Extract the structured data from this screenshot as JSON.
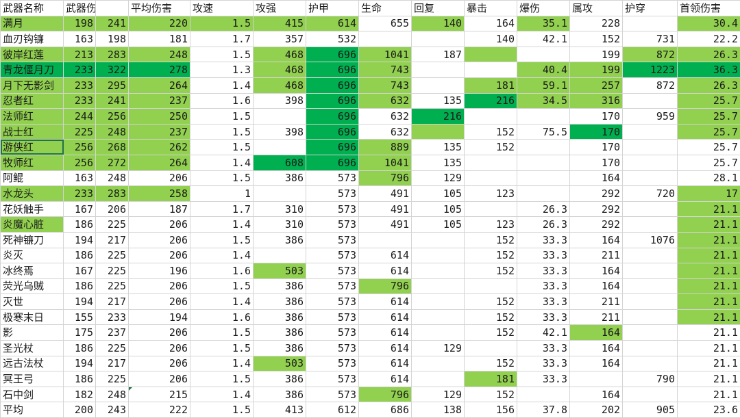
{
  "sheet": {
    "headers": [
      "武器名称",
      "武器伤害",
      "",
      "平均伤害",
      "攻速",
      "攻强",
      "护甲",
      "生命",
      "回复",
      "暴击",
      "爆伤",
      "属攻",
      "护穿",
      "首领伤害"
    ],
    "highlight_colors": {
      "light": "#92d050",
      "dark": "#00b050"
    },
    "rows": [
      [
        "满月",
        "198",
        "241",
        "220",
        "1.5",
        "415",
        "614",
        "655",
        "140",
        "164",
        "35.1",
        "228",
        "",
        "30.4"
      ],
      [
        "血刃钩镰",
        "163",
        "198",
        "181",
        "1.7",
        "357",
        "532",
        "",
        "",
        "140",
        "42.1",
        "152",
        "731",
        "22.2"
      ],
      [
        "彼岸红莲",
        "213",
        "283",
        "248",
        "1.5",
        "468",
        "696",
        "1041",
        "187",
        "",
        "",
        "199",
        "872",
        "26.3"
      ],
      [
        "青龙偃月刀",
        "233",
        "322",
        "278",
        "1.3",
        "468",
        "696",
        "743",
        "",
        "",
        "40.4",
        "199",
        "1223",
        "36.3"
      ],
      [
        "月下无影剑",
        "233",
        "295",
        "264",
        "1.4",
        "468",
        "696",
        "743",
        "",
        "181",
        "59.1",
        "257",
        "872",
        "26.3"
      ],
      [
        "忍者红",
        "233",
        "241",
        "237",
        "1.6",
        "398",
        "696",
        "632",
        "135",
        "216",
        "34.5",
        "316",
        "",
        "25.7"
      ],
      [
        "法师红",
        "244",
        "256",
        "250",
        "1.5",
        "",
        "696",
        "632",
        "216",
        "",
        "",
        "170",
        "959",
        "25.7"
      ],
      [
        "战士红",
        "225",
        "248",
        "237",
        "1.5",
        "398",
        "696",
        "632",
        "",
        "152",
        "75.5",
        "170",
        "",
        "25.7"
      ],
      [
        "游侠红",
        "256",
        "268",
        "262",
        "1.5",
        "",
        "696",
        "889",
        "135",
        "152",
        "",
        "170",
        "",
        "25.7"
      ],
      [
        "牧师红",
        "256",
        "272",
        "264",
        "1.4",
        "608",
        "696",
        "1041",
        "135",
        "",
        "",
        "170",
        "",
        "25.7"
      ],
      [
        "阿鲲",
        "163",
        "248",
        "206",
        "1.5",
        "386",
        "573",
        "796",
        "129",
        "",
        "",
        "164",
        "",
        "28.1"
      ],
      [
        "水龙头",
        "233",
        "283",
        "258",
        "1",
        "",
        "573",
        "491",
        "105",
        "123",
        "",
        "292",
        "720",
        "17"
      ],
      [
        "花妖触手",
        "167",
        "206",
        "187",
        "1.7",
        "310",
        "573",
        "491",
        "105",
        "",
        "26.3",
        "292",
        "",
        "21.1"
      ],
      [
        "炎魔心脏",
        "186",
        "225",
        "206",
        "1.4",
        "310",
        "573",
        "491",
        "105",
        "123",
        "26.3",
        "292",
        "",
        "21.1"
      ],
      [
        "死神镰刀",
        "194",
        "217",
        "206",
        "1.5",
        "386",
        "573",
        "",
        "",
        "152",
        "33.3",
        "164",
        "1076",
        "21.1"
      ],
      [
        "炎灭",
        "186",
        "225",
        "206",
        "1.4",
        "",
        "573",
        "614",
        "",
        "152",
        "33.3",
        "211",
        "",
        "21.1"
      ],
      [
        "冰终焉",
        "167",
        "225",
        "196",
        "1.6",
        "503",
        "573",
        "614",
        "",
        "152",
        "33.3",
        "164",
        "",
        "21.1"
      ],
      [
        "荧光乌贼",
        "186",
        "225",
        "206",
        "1.5",
        "386",
        "573",
        "796",
        "",
        "",
        "33.3",
        "164",
        "",
        "21.1"
      ],
      [
        "灭世",
        "194",
        "217",
        "206",
        "1.4",
        "386",
        "573",
        "614",
        "",
        "152",
        "33.3",
        "211",
        "",
        "21.1"
      ],
      [
        "极寒末日",
        "155",
        "233",
        "194",
        "1.6",
        "386",
        "573",
        "614",
        "",
        "152",
        "33.3",
        "211",
        "",
        "21.1"
      ],
      [
        "影",
        "175",
        "237",
        "206",
        "1.5",
        "386",
        "573",
        "614",
        "",
        "152",
        "42.1",
        "164",
        "",
        "21.1"
      ],
      [
        "圣光杖",
        "186",
        "225",
        "206",
        "1.5",
        "386",
        "573",
        "614",
        "129",
        "",
        "33.3",
        "164",
        "",
        "21.1"
      ],
      [
        "远古法杖",
        "194",
        "217",
        "206",
        "1.4",
        "503",
        "573",
        "614",
        "",
        "152",
        "33.3",
        "164",
        "",
        "21.1"
      ],
      [
        "冥王弓",
        "186",
        "225",
        "206",
        "1.5",
        "386",
        "573",
        "614",
        "",
        "181",
        "33.3",
        "",
        "790",
        "21.1"
      ],
      [
        "石中剑",
        "182",
        "248",
        "215",
        "1.4",
        "386",
        "573",
        "796",
        "129",
        "152",
        "",
        "164",
        "",
        "21.1"
      ],
      [
        "平均",
        "200",
        "243",
        "222",
        "1.5",
        "413",
        "612",
        "686",
        "138",
        "156",
        "37.8",
        "202",
        "905",
        "23.6"
      ]
    ],
    "fills": [
      "LLLLLLL.L.L..L.L",
      "................",
      "LLLL.LDL.L..LL..",
      "DDDD.LDL..LLDD..",
      "LLLL.LDL.LLL.LL.",
      "LLLL..DL.DLL.L..",
      "LLLL..D.D....LL.",
      "LLLL..D.L..D.L..",
      "LLLL..DL........",
      "LLLL.DDL......L.",
      ".......L......L.",
      "LLLL.........L.L",
      ".............L.L",
      "L............LLL",
      ".............L.L",
      ".............L.L",
      ".....L.......L.L",
      ".......L.....L.L",
      ".............L.L",
      ".............L.L",
      "...........L...L",
      "...............L",
      ".....L.........L",
      ".........L.....L",
      ".......L.......L",
      "................"
    ]
  }
}
